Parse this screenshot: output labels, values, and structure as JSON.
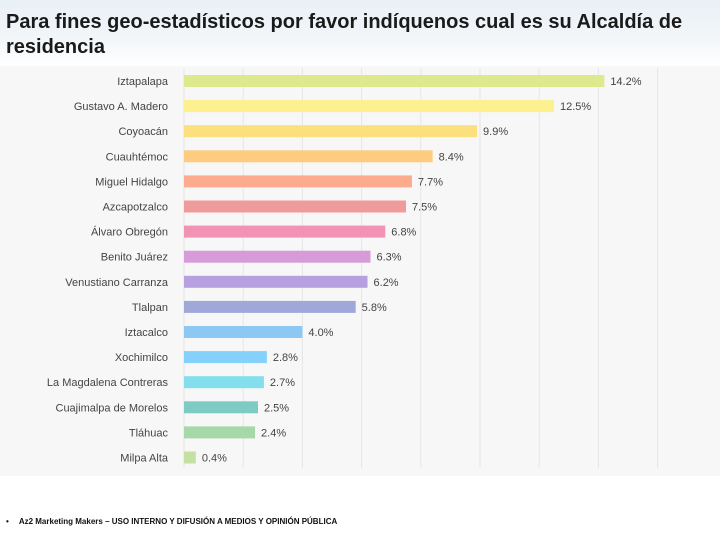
{
  "title": "Para fines geo-estadísticos por favor indíquenos cual es su Alcaldía de residencia",
  "footer": {
    "bullet": "•",
    "text": "Az2 Marketing Makers – USO INTERNO Y DIFUSIÓN A MEDIOS Y OPINIÓN PÚBLICA"
  },
  "chart_data": {
    "type": "bar",
    "orientation": "horizontal",
    "title": "",
    "xlabel": "",
    "ylabel": "",
    "xlim": [
      0,
      16
    ],
    "grid": true,
    "value_suffix": "%",
    "categories": [
      "Iztapalapa",
      "Gustavo A. Madero",
      "Coyoacán",
      "Cuauhtémoc",
      "Miguel Hidalgo",
      "Azcapotzalco",
      "Álvaro Obregón",
      "Benito Juárez",
      "Venustiano Carranza",
      "Tlalpan",
      "Iztacalco",
      "Xochimilco",
      "La Magdalena Contreras",
      "Cuajimalpa de Morelos",
      "Tláhuac",
      "Milpa Alta"
    ],
    "values": [
      14.2,
      12.5,
      9.9,
      8.4,
      7.7,
      7.5,
      6.8,
      6.3,
      6.2,
      5.8,
      4.0,
      2.8,
      2.7,
      2.5,
      2.4,
      0.4
    ],
    "labels": [
      "14.2%",
      "12.5%",
      "9.9%",
      "8.4%",
      "7.7%",
      "7.5%",
      "6.8%",
      "6.3%",
      "6.2%",
      "5.8%",
      "4.0%",
      "2.8%",
      "2.7%",
      "2.5%",
      "2.4%",
      "0.4%"
    ],
    "colors": [
      "#dde98c",
      "#fdf08e",
      "#fde07e",
      "#fdcc80",
      "#fdab8e",
      "#ef9b9b",
      "#f292b4",
      "#d79bd9",
      "#b7a0e0",
      "#9fa8d9",
      "#8dc8f5",
      "#84d2fb",
      "#84dfec",
      "#7ecbc3",
      "#a7d8a7",
      "#c3e2a2"
    ]
  }
}
